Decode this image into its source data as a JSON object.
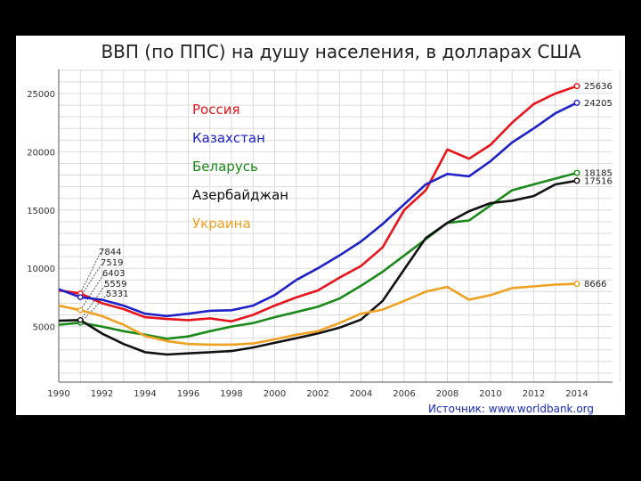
{
  "chart_data": {
    "type": "line",
    "title": "ВВП (по ППС) на душу населения, в долларах США",
    "source": "Источник: www.worldbank.org",
    "xlabel": "",
    "ylabel": "",
    "xlim": [
      1990,
      2016
    ],
    "ylim": [
      0,
      27500
    ],
    "x_ticks": [
      "1990",
      "1992",
      "1994",
      "1996",
      "1998",
      "2000",
      "2002",
      "2004",
      "2006",
      "2008",
      "2010",
      "2012",
      "2014"
    ],
    "y_ticks": [
      "5000",
      "10000",
      "15000",
      "20000",
      "25000"
    ],
    "grid": true,
    "x": [
      1990,
      1991,
      1992,
      1993,
      1994,
      1995,
      1996,
      1997,
      1998,
      1999,
      2000,
      2001,
      2002,
      2003,
      2004,
      2005,
      2006,
      2007,
      2008,
      2009,
      2010,
      2011,
      2012,
      2013,
      2014
    ],
    "series": [
      {
        "name": "Россия",
        "color": "#e8141a",
        "values": [
          8100,
          7844,
          7000,
          6500,
          5800,
          5650,
          5550,
          5700,
          5450,
          6000,
          6800,
          7500,
          8100,
          9200,
          10200,
          11800,
          15000,
          16700,
          20200,
          19400,
          20600,
          22500,
          24100,
          25000,
          25636
        ],
        "end_label": "25636"
      },
      {
        "name": "Казахстан",
        "color": "#1f22c8",
        "values": [
          8200,
          7519,
          7300,
          6800,
          6100,
          5900,
          6100,
          6350,
          6400,
          6800,
          7700,
          9000,
          10000,
          11100,
          12300,
          13800,
          15500,
          17200,
          18100,
          17900,
          19200,
          20800,
          22000,
          23300,
          24205
        ],
        "end_label": "24205"
      },
      {
        "name": "Беларусь",
        "color": "#1a8a1a",
        "values": [
          5150,
          5331,
          5000,
          4600,
          4300,
          3950,
          4150,
          4600,
          5000,
          5300,
          5800,
          6250,
          6700,
          7400,
          8500,
          9700,
          11100,
          12500,
          13900,
          14100,
          15400,
          16700,
          17200,
          17700,
          18185
        ],
        "end_label": "18185"
      },
      {
        "name": "Азербайджан",
        "color": "#111111",
        "values": [
          5500,
          5559,
          4400,
          3500,
          2800,
          2600,
          2700,
          2800,
          2900,
          3200,
          3600,
          4000,
          4400,
          4900,
          5600,
          7200,
          9900,
          12600,
          13900,
          14900,
          15600,
          15800,
          16200,
          17200,
          17516
        ],
        "end_label": "17516"
      },
      {
        "name": "Украина",
        "color": "#f0a020",
        "values": [
          6800,
          6403,
          5900,
          5150,
          4200,
          3750,
          3500,
          3450,
          3450,
          3550,
          3900,
          4300,
          4600,
          5300,
          6100,
          6450,
          7200,
          8000,
          8400,
          7300,
          7700,
          8300,
          8450,
          8600,
          8666
        ],
        "end_label": "8666"
      }
    ],
    "annotations_1991": [
      "7844",
      "7519",
      "6403",
      "5559",
      "5331"
    ]
  }
}
